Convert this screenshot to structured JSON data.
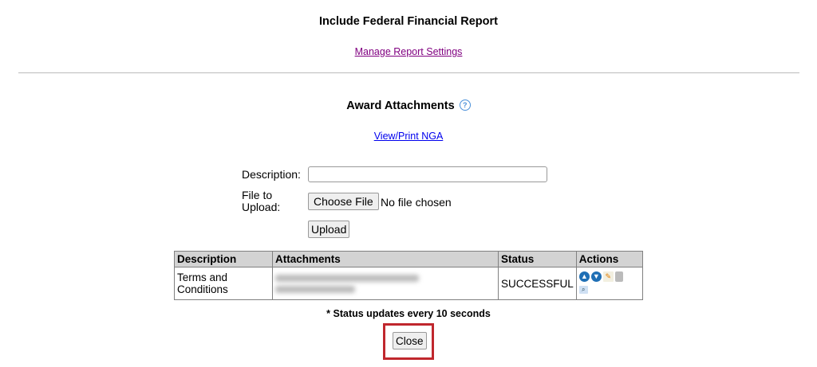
{
  "header": {
    "title": "Include Federal Financial Report",
    "manage_link": "Manage Report Settings"
  },
  "attachments": {
    "title": "Award Attachments",
    "help_icon": "help-circle-icon",
    "nga_link": "View/Print NGA",
    "form": {
      "description_label": "Description:",
      "description_value": "",
      "file_label": "File to Upload:",
      "choose_file": "Choose File",
      "no_file": "No file chosen",
      "upload": "Upload"
    },
    "table": {
      "headers": [
        "Description",
        "Attachments",
        "Status",
        "Actions"
      ],
      "rows": [
        {
          "description": "Terms and Conditions",
          "status": "SUCCESSFUL",
          "actions": [
            "move-up-icon",
            "move-down-icon",
            "edit-icon",
            "delete-icon",
            "view-icon"
          ]
        }
      ]
    },
    "note": "* Status updates every 10 seconds",
    "close": "Close"
  },
  "colors": {
    "link": "#0000ee",
    "visited_link": "#800080",
    "highlight": "#c0272d",
    "header_bg": "#d3d3d3"
  }
}
